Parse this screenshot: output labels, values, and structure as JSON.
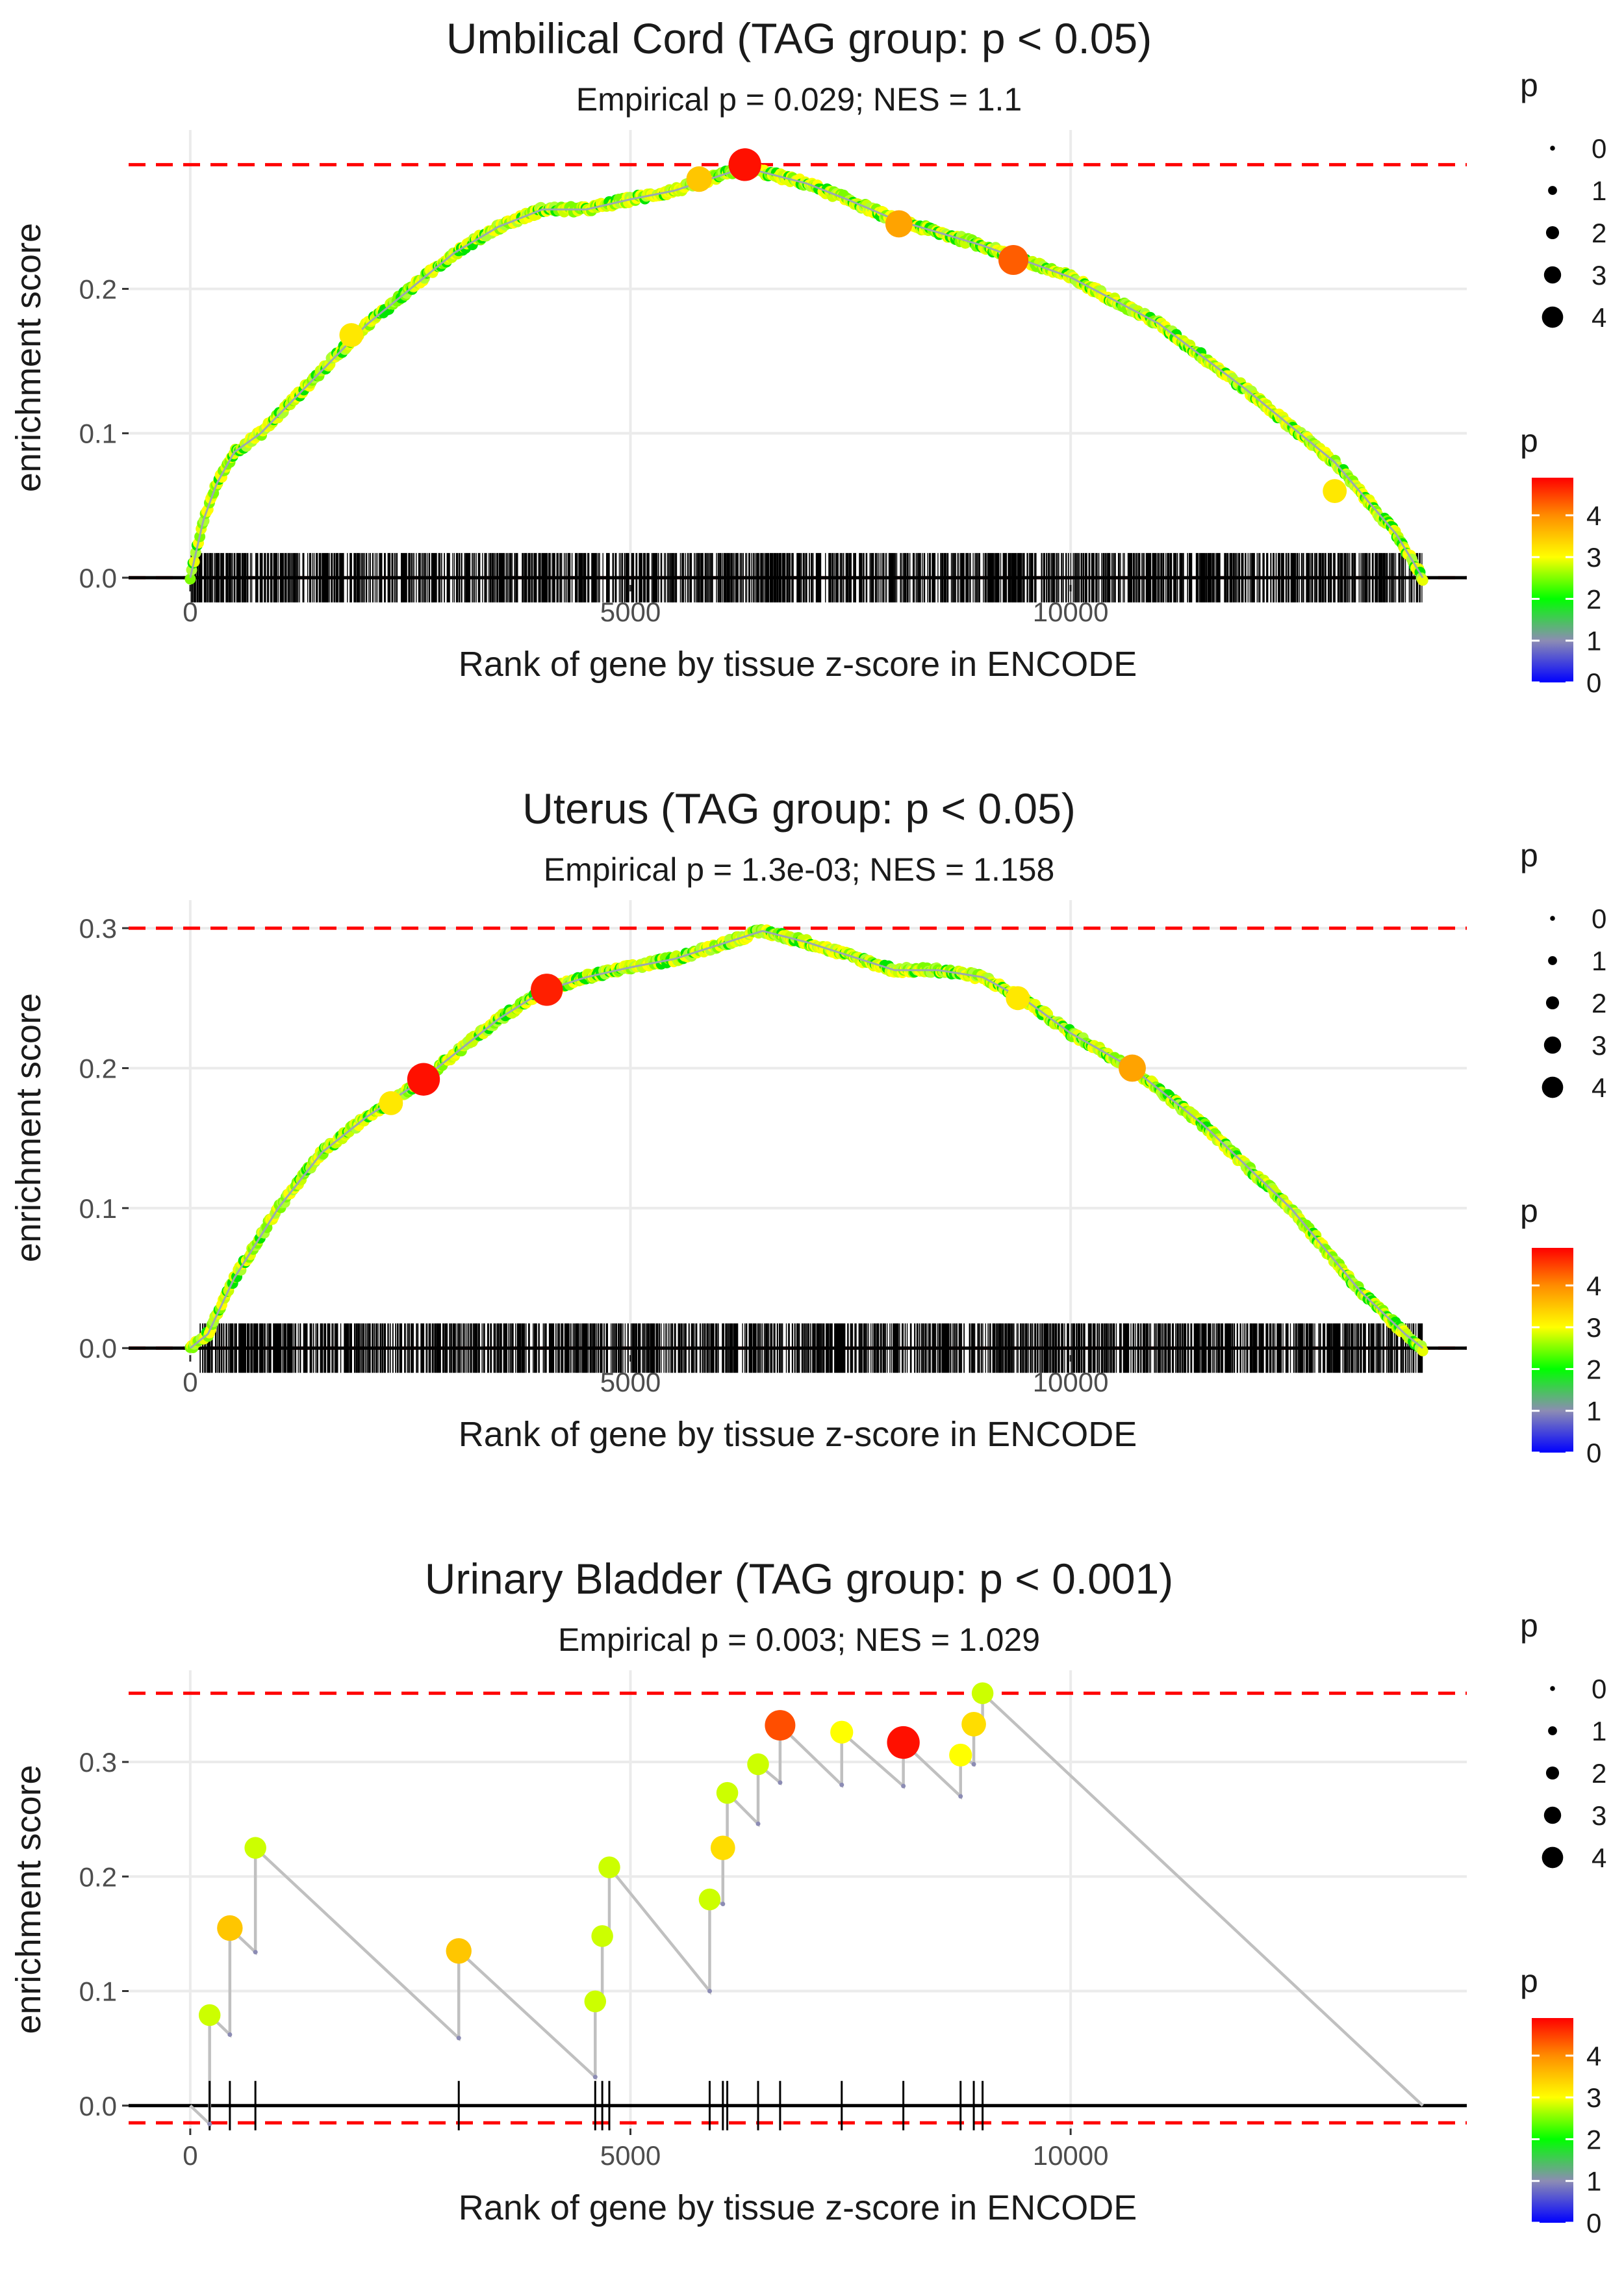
{
  "figure": {
    "legend_size_title": "p",
    "legend_color_title": "p",
    "size_legend_labels": [
      "0",
      "1",
      "2",
      "3",
      "4"
    ],
    "colorbar_tick_labels": [
      "0",
      "1",
      "2",
      "3",
      "4"
    ],
    "colorbar_stops": [
      {
        "p": 0,
        "color": "#0000ff"
      },
      {
        "p": 1,
        "color": "#8c8cb4"
      },
      {
        "p": 2,
        "color": "#00ff00"
      },
      {
        "p": 3,
        "color": "#ffff00"
      },
      {
        "p": 4,
        "color": "#ff8c00"
      },
      {
        "p": 4.9,
        "color": "#ff0000"
      }
    ],
    "colors": {
      "threshold_line": "#ff0000",
      "zero_line": "#000000",
      "running_line": "#c0c0c0",
      "grid": "#ebebeb",
      "rug": "#000000"
    }
  },
  "chart_data": [
    {
      "type": "line",
      "variant": "dense",
      "title": "Umbilical Cord (TAG group: p < 0.05)",
      "subtitle": "Empirical p = 0.029; NES = 1.1",
      "xlabel": "Rank of gene by tissue z-score in ENCODE",
      "ylabel": "enrichment score",
      "xlim": [
        -700,
        14500
      ],
      "ylim": [
        -0.005,
        0.31
      ],
      "xticks": [
        0,
        5000,
        10000
      ],
      "xtick_labels": [
        "0",
        "5000",
        "10000"
      ],
      "yticks": [
        0,
        0.1,
        0.2
      ],
      "ytick_labels": [
        "0.0",
        "0.1",
        "0.2"
      ],
      "max_es": 0.286,
      "min_es": 0,
      "n_genes": 14000,
      "rug_range": [
        0,
        14000
      ],
      "curve": {
        "x": [
          0,
          150,
          300,
          500,
          800,
          1200,
          1600,
          2000,
          2500,
          3000,
          3500,
          4000,
          4500,
          5000,
          5500,
          6000,
          6300,
          7000,
          7500,
          8000,
          9000,
          10000,
          11000,
          12000,
          13000,
          13700,
          14000
        ],
        "y": [
          0,
          0.04,
          0.065,
          0.087,
          0.1,
          0.125,
          0.15,
          0.175,
          0.2,
          0.225,
          0.243,
          0.255,
          0.255,
          0.262,
          0.268,
          0.278,
          0.284,
          0.273,
          0.261,
          0.248,
          0.23,
          0.208,
          0.176,
          0.13,
          0.08,
          0.03,
          0.0
        ]
      },
      "highlights": [
        {
          "x": 1830,
          "y": 0.168,
          "p": 3.2
        },
        {
          "x": 5780,
          "y": 0.276,
          "p": 3.5
        },
        {
          "x": 6300,
          "y": 0.286,
          "p": 4.8
        },
        {
          "x": 8050,
          "y": 0.245,
          "p": 3.8
        },
        {
          "x": 9350,
          "y": 0.22,
          "p": 4.3
        },
        {
          "x": 13000,
          "y": 0.06,
          "p": 3.2
        }
      ]
    },
    {
      "type": "line",
      "variant": "dense",
      "title": "Uterus (TAG group: p < 0.05)",
      "subtitle": "Empirical p = 1.3e-03; NES = 1.158",
      "xlabel": "Rank of gene by tissue z-score in ENCODE",
      "ylabel": "enrichment score",
      "xlim": [
        -700,
        14500
      ],
      "ylim": [
        -0.005,
        0.32
      ],
      "xticks": [
        0,
        5000,
        10000
      ],
      "xtick_labels": [
        "0",
        "5000",
        "10000"
      ],
      "yticks": [
        0,
        0.1,
        0.2,
        0.3
      ],
      "ytick_labels": [
        "0.0",
        "0.1",
        "0.2",
        "0.3"
      ],
      "max_es": 0.3,
      "min_es": 0,
      "n_genes": 14000,
      "rug_range": [
        100,
        14000
      ],
      "curve": {
        "x": [
          0,
          200,
          500,
          1000,
          1500,
          2000,
          2600,
          3000,
          3500,
          4000,
          4500,
          5000,
          5500,
          6000,
          6500,
          7000,
          7500,
          8000,
          8500,
          9000,
          9500,
          10000,
          10700,
          11500,
          12500,
          13300,
          13800,
          14000
        ],
        "y": [
          0,
          0.01,
          0.05,
          0.1,
          0.14,
          0.165,
          0.19,
          0.21,
          0.235,
          0.255,
          0.265,
          0.272,
          0.278,
          0.288,
          0.298,
          0.29,
          0.28,
          0.27,
          0.27,
          0.265,
          0.248,
          0.225,
          0.2,
          0.16,
          0.1,
          0.04,
          0.01,
          0.0
        ]
      },
      "highlights": [
        {
          "x": 2280,
          "y": 0.175,
          "p": 3.2
        },
        {
          "x": 2650,
          "y": 0.192,
          "p": 4.8
        },
        {
          "x": 4050,
          "y": 0.256,
          "p": 4.7
        },
        {
          "x": 9400,
          "y": 0.25,
          "p": 3.2
        },
        {
          "x": 10700,
          "y": 0.2,
          "p": 3.8
        }
      ]
    },
    {
      "type": "line",
      "variant": "sparse",
      "title": "Urinary Bladder (TAG group: p < 0.001)",
      "subtitle": "Empirical p = 0.003; NES = 1.029",
      "xlabel": "Rank of gene by tissue z-score in ENCODE",
      "ylabel": "enrichment score",
      "xlim": [
        -700,
        14500
      ],
      "ylim": [
        -0.02,
        0.38
      ],
      "xticks": [
        0,
        5000,
        10000
      ],
      "xtick_labels": [
        "0",
        "5000",
        "10000"
      ],
      "yticks": [
        0,
        0.1,
        0.2,
        0.3
      ],
      "ytick_labels": [
        "0.0",
        "0.1",
        "0.2",
        "0.3"
      ],
      "max_es": 0.36,
      "min_es": -0.015,
      "n_genes": 14000,
      "start_es": 0.0,
      "end_x": 14000,
      "end_es": 0.0,
      "hits": [
        {
          "x": 220,
          "before": -0.016,
          "after": 0.079,
          "p": 2.8
        },
        {
          "x": 450,
          "before": 0.062,
          "after": 0.155,
          "p": 3.5
        },
        {
          "x": 740,
          "before": 0.134,
          "after": 0.225,
          "p": 2.8
        },
        {
          "x": 3050,
          "before": 0.059,
          "after": 0.135,
          "p": 3.5
        },
        {
          "x": 4600,
          "before": 0.025,
          "after": 0.091,
          "p": 2.8
        },
        {
          "x": 4680,
          "before": 0.087,
          "after": 0.148,
          "p": 2.8
        },
        {
          "x": 4760,
          "before": 0.144,
          "after": 0.208,
          "p": 2.8
        },
        {
          "x": 5900,
          "before": 0.1,
          "after": 0.18,
          "p": 2.8
        },
        {
          "x": 6050,
          "before": 0.176,
          "after": 0.225,
          "p": 3.3
        },
        {
          "x": 6100,
          "before": 0.222,
          "after": 0.273,
          "p": 2.8
        },
        {
          "x": 6450,
          "before": 0.246,
          "after": 0.298,
          "p": 2.8
        },
        {
          "x": 6700,
          "before": 0.282,
          "after": 0.332,
          "p": 4.4
        },
        {
          "x": 7400,
          "before": 0.28,
          "after": 0.326,
          "p": 3.0
        },
        {
          "x": 8100,
          "before": 0.279,
          "after": 0.317,
          "p": 4.8
        },
        {
          "x": 8750,
          "before": 0.27,
          "after": 0.306,
          "p": 3.0
        },
        {
          "x": 8900,
          "before": 0.298,
          "after": 0.333,
          "p": 3.3
        },
        {
          "x": 9000,
          "before": 0.33,
          "after": 0.36,
          "p": 2.8
        }
      ]
    }
  ]
}
